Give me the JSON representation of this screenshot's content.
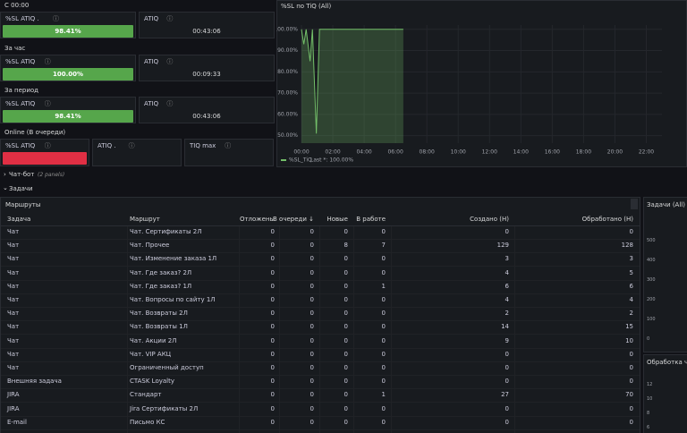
{
  "sections": [
    {
      "title": "С 00:00",
      "bar_color": "#56a64b",
      "stats": [
        {
          "title": "%SL ATIQ .",
          "value": "98.41%"
        },
        {
          "title": "ATIQ",
          "value": "00:43:06"
        }
      ]
    },
    {
      "title": "За час",
      "bar_color": "#56a64b",
      "stats": [
        {
          "title": "%SL ATIQ",
          "value": "100.00%"
        },
        {
          "title": "ATIQ",
          "value": "00:09:33"
        }
      ]
    },
    {
      "title": "За период",
      "bar_color": "#56a64b",
      "stats": [
        {
          "title": "%SL ATIQ",
          "value": "98.41%"
        },
        {
          "title": "ATIQ",
          "value": "00:43:06"
        }
      ]
    },
    {
      "title": "Online (В очереди)",
      "bar_color": "#e02f44",
      "stats": [
        {
          "title": "%SL ATIQ"
        },
        {
          "title": "ATIQ ."
        },
        {
          "title": "TIQ max"
        }
      ]
    }
  ],
  "chart_data": {
    "type": "line",
    "title": "%SL по TiQ (All)",
    "x": [
      0,
      0.15,
      0.3,
      0.55,
      0.7,
      0.95,
      1.15,
      6.5
    ],
    "series": [
      {
        "name": "%SL_TiQ",
        "color": "#73bf69",
        "values": [
          100,
          93,
          100,
          85,
          100,
          51,
          100,
          100
        ]
      }
    ],
    "legend_value": "Last *: 100.00%",
    "xlim": [
      0,
      23
    ],
    "ylim": [
      46.5,
      102
    ],
    "xticks": [
      {
        "value": 0,
        "label": "00:00"
      },
      {
        "value": 2,
        "label": "02:00"
      },
      {
        "value": 4,
        "label": "04:00"
      },
      {
        "value": 6,
        "label": "06:00"
      },
      {
        "value": 8,
        "label": "08:00"
      },
      {
        "value": 10,
        "label": "10:00"
      },
      {
        "value": 12,
        "label": "12:00"
      },
      {
        "value": 14,
        "label": "14:00"
      },
      {
        "value": 16,
        "label": "16:00"
      },
      {
        "value": 18,
        "label": "18:00"
      },
      {
        "value": 20,
        "label": "20:00"
      },
      {
        "value": 22,
        "label": "22:00"
      }
    ],
    "yticks": [
      {
        "value": 100,
        "label": "100.00%"
      },
      {
        "value": 90,
        "label": "90.00%"
      },
      {
        "value": 80,
        "label": "80.00%"
      },
      {
        "value": 70,
        "label": "70.00%"
      },
      {
        "value": 60,
        "label": "60.00%"
      },
      {
        "value": 50,
        "label": "50.00%"
      }
    ],
    "grid": true
  },
  "rows": [
    {
      "title": "Чат-бот",
      "note": "(2 panels)"
    },
    {
      "title": "Задачи"
    }
  ],
  "table": {
    "title": "Маршруты",
    "columns": [
      "Задача",
      "Маршрут",
      "Отложены",
      "В очереди ↓",
      "Новые",
      "В работе",
      "Создано (Н)",
      "Обработано (Н)"
    ],
    "rows": [
      [
        "Чат",
        "Чат. Сертификаты 2Л",
        0,
        0,
        0,
        0,
        0,
        0
      ],
      [
        "Чат",
        "Чат. Прочее",
        0,
        0,
        8,
        7,
        129,
        128
      ],
      [
        "Чат",
        "Чат. Изменение заказа 1Л",
        0,
        0,
        0,
        0,
        3,
        3
      ],
      [
        "Чат",
        "Чат. Где заказ? 2Л",
        0,
        0,
        0,
        0,
        4,
        5
      ],
      [
        "Чат",
        "Чат. Где заказ? 1Л",
        0,
        0,
        0,
        1,
        6,
        6
      ],
      [
        "Чат",
        "Чат. Вопросы по сайту 1Л",
        0,
        0,
        0,
        0,
        4,
        4
      ],
      [
        "Чат",
        "Чат. Возвраты 2Л",
        0,
        0,
        0,
        0,
        2,
        2
      ],
      [
        "Чат",
        "Чат. Возвраты 1Л",
        0,
        0,
        0,
        0,
        14,
        15
      ],
      [
        "Чат",
        "Чат. Акции 2Л",
        0,
        0,
        0,
        0,
        9,
        10
      ],
      [
        "Чат",
        "Чат. VIP АКЦ",
        0,
        0,
        0,
        0,
        0,
        0
      ],
      [
        "Чат",
        "Ограниченный доступ",
        0,
        0,
        0,
        0,
        0,
        0
      ],
      [
        "Внешняя задача",
        "CTASK Loyalty",
        0,
        0,
        0,
        0,
        0,
        0
      ],
      [
        "JIRA",
        "Стандарт",
        0,
        0,
        0,
        1,
        27,
        70
      ],
      [
        "JIRA",
        "Jira Сертификаты 2Л",
        0,
        0,
        0,
        0,
        0,
        0
      ],
      [
        "E-mail",
        "Письмо КС",
        0,
        0,
        0,
        0,
        0,
        0
      ]
    ]
  },
  "side_panels": [
    {
      "title": "Задачи (All)",
      "labels": [
        "500",
        "400",
        "300",
        "200",
        "100",
        "0"
      ]
    },
    {
      "title": "Обработка чато",
      "labels": [
        "12",
        "10",
        "8",
        "6"
      ]
    }
  ]
}
